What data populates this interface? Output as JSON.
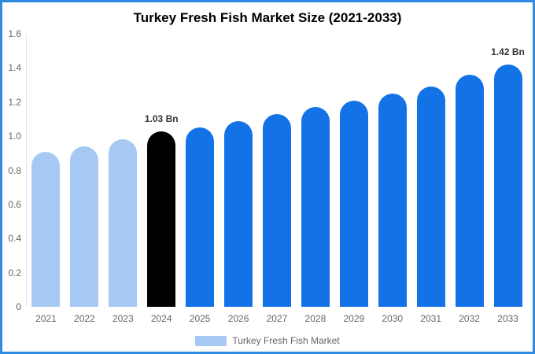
{
  "frame": {
    "border_color": "#2e8be0",
    "background_color": "#ffffff"
  },
  "chart_data": {
    "type": "bar",
    "title": "Turkey Fresh Fish Market Size (2021-2033)",
    "categories": [
      "2021",
      "2022",
      "2023",
      "2024",
      "2025",
      "2026",
      "2027",
      "2028",
      "2029",
      "2030",
      "2031",
      "2032",
      "2033"
    ],
    "values": [
      0.91,
      0.94,
      0.98,
      1.03,
      1.05,
      1.09,
      1.13,
      1.17,
      1.21,
      1.25,
      1.29,
      1.36,
      1.42
    ],
    "unit": "Bn",
    "colors": [
      "#a6c9f4",
      "#a6c9f4",
      "#a6c9f4",
      "#000000",
      "#1373e6",
      "#1373e6",
      "#1373e6",
      "#1373e6",
      "#1373e6",
      "#1373e6",
      "#1373e6",
      "#1373e6",
      "#1373e6"
    ],
    "ylim": [
      0,
      1.6
    ],
    "yticks": [
      "0",
      "0.2",
      "0.4",
      "0.6",
      "0.8",
      "1.0",
      "1.2",
      "1.4",
      "1.6"
    ],
    "grid": false,
    "legend_position": "bottom",
    "annotations": [
      {
        "category": "2024",
        "text": "1.03 Bn"
      },
      {
        "category": "2033",
        "text": "1.42 Bn"
      }
    ]
  },
  "legend": {
    "label": "Turkey Fresh Fish Market",
    "swatch_color": "#a6c9f4"
  }
}
